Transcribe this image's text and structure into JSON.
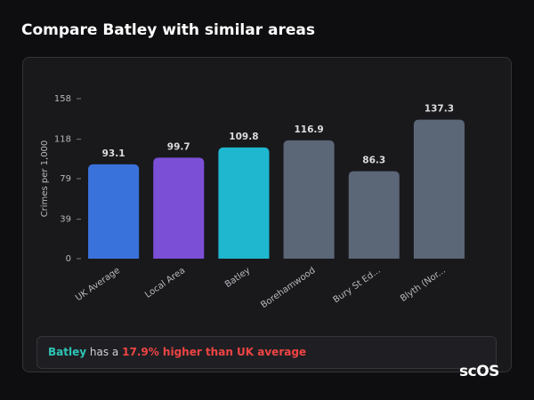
{
  "page": {
    "title": "Compare Batley with similar areas",
    "logo": "scOS"
  },
  "chart_data": {
    "type": "bar",
    "y_label": "Crimes per 1,000",
    "categories": [
      "UK Average",
      "Local Area",
      "Batley",
      "Borehamwood",
      "Bury St Ed...",
      "Blyth (Nor..."
    ],
    "values": [
      93.1,
      99.7,
      109.8,
      116.9,
      86.3,
      137.3
    ],
    "colors": [
      "#3a72dc",
      "#7b4fd6",
      "#1fb7cf",
      "#5b6677",
      "#5b6677",
      "#5b6677"
    ],
    "ylim": [
      0,
      158
    ],
    "yticks": [
      0,
      39,
      79,
      118,
      158
    ],
    "grid": false
  },
  "callout": {
    "area": "Batley",
    "middle": "has a",
    "highlight": "17.9% higher than UK average"
  }
}
